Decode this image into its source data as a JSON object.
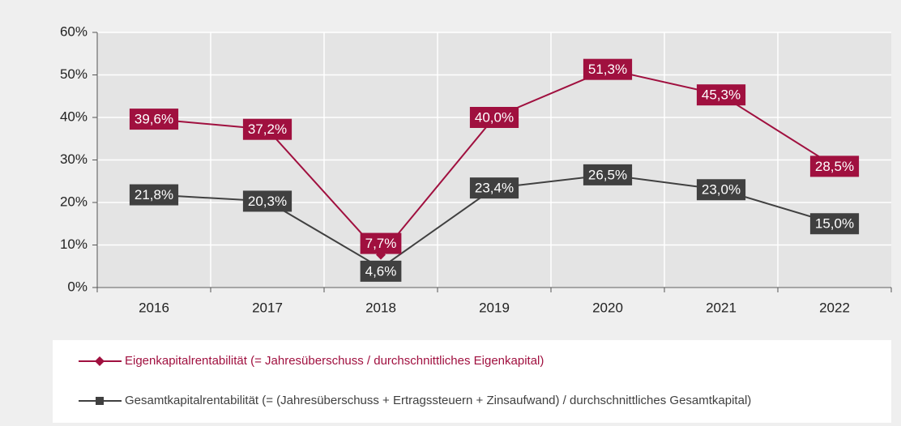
{
  "chart_data": {
    "type": "line",
    "categories": [
      "2016",
      "2017",
      "2018",
      "2019",
      "2020",
      "2021",
      "2022"
    ],
    "series": [
      {
        "name": "Eigenkapitalrentabilität (= Jahresüberschuss / durchschnittliches Eigenkapital)",
        "color": "#a0103f",
        "marker": "diamond",
        "values": [
          39.6,
          37.2,
          7.7,
          40.0,
          51.3,
          45.3,
          28.5
        ],
        "value_labels": [
          "39,6%",
          "37,2%",
          "7,7%",
          "40,0%",
          "51,3%",
          "45,3%",
          "28,5%"
        ]
      },
      {
        "name": "Gesamtkapitalrentabilität (= (Jahresüberschuss + Ertragssteuern + Zinsaufwand) / durchschnittliches Gesamtkapital)",
        "color": "#404040",
        "marker": "square",
        "values": [
          21.8,
          20.3,
          4.6,
          23.4,
          26.5,
          23.0,
          15.0
        ],
        "value_labels": [
          "21,8%",
          "20,3%",
          "4,6%",
          "23,4%",
          "26,5%",
          "23,0%",
          "15,0%"
        ]
      }
    ],
    "ylim": [
      0,
      60
    ],
    "yticks": [
      {
        "value": 0,
        "label": "0%"
      },
      {
        "value": 10,
        "label": "10%"
      },
      {
        "value": 20,
        "label": "20%"
      },
      {
        "value": 30,
        "label": "30%"
      },
      {
        "value": 40,
        "label": "40%"
      },
      {
        "value": 50,
        "label": "50%"
      },
      {
        "value": 60,
        "label": "60%"
      }
    ],
    "grid": true,
    "legend": "bottom"
  }
}
